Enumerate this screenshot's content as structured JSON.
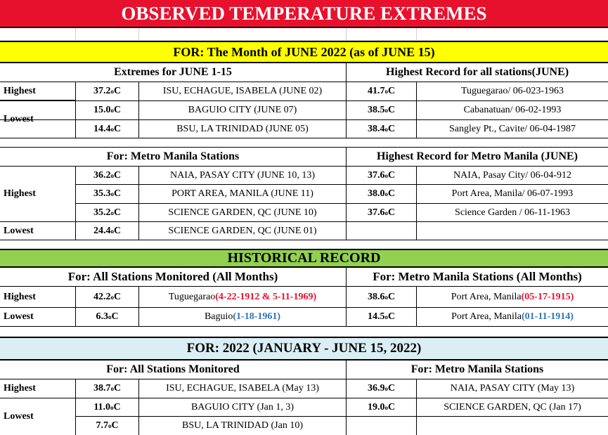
{
  "title": "OBSERVED TEMPERATURE EXTREMES",
  "month_banner": "FOR:   The Month of JUNE 2022 (as of  JUNE 15)",
  "section1": {
    "left_header": "Extremes for JUNE 1-15",
    "right_header": "Highest Record for all stations(JUNE)",
    "highest_label": "Highest",
    "lowest_label": "Lowest",
    "rows": [
      {
        "value": "37.2",
        "unit": "C",
        "station": "ISU, ECHAGUE, ISABELA (JUNE 02)",
        "rec_value": "41.7",
        "rec_unit": "C",
        "rec_station": "Tuguegarao/ 06-023-1963"
      },
      {
        "value": "15.0",
        "unit": "C",
        "station": "BAGUIO CITY  (JUNE 07)",
        "rec_value": "38.5",
        "rec_unit": "C",
        "rec_station": "Cabanatuan/ 06-02-1993"
      },
      {
        "value": "14.4",
        "unit": "C",
        "station": "BSU, LA TRINIDAD (JUNE 05)",
        "rec_value": "38.4",
        "rec_unit": "C",
        "rec_station": "Sangley Pt., Cavite/ 06-04-1987"
      }
    ]
  },
  "section2": {
    "left_header": "For: Metro Manila Stations",
    "right_header": "Highest Record for Metro Manila (JUNE)",
    "highest_label": "Highest",
    "lowest_label": "Lowest",
    "rows": [
      {
        "value": "36.2 ",
        "unit": "C",
        "station": "NAIA, PASAY CITY (JUNE 10, 13)",
        "rec_value": "37.6",
        "rec_unit": "C",
        "rec_station": "NAIA, Pasay City/  06-04-912"
      },
      {
        "value": "35.3 ",
        "unit": "C",
        "station": "PORT AREA, MANILA (JUNE 11)",
        "rec_value": "38.0",
        "rec_unit": "C",
        "rec_station": "Port Area, Manila/ 06-07-1993"
      },
      {
        "value": "35.2 ",
        "unit": "C",
        "station": "SCIENCE GARDEN, QC (JUNE 10)",
        "rec_value": "37.6",
        "rec_unit": "C",
        "rec_station": "Science Garden / 06-11-1963"
      },
      {
        "value": "24.4 ",
        "unit": "C",
        "station": "SCIENCE GARDEN, QC (JUNE 01)"
      }
    ]
  },
  "historical": {
    "banner": "HISTORICAL RECORD",
    "left_header": "For:  All Stations Monitored (All Months)",
    "right_header": "For: Metro Manila Stations (All Months)",
    "highest": {
      "label": "Highest",
      "value": "42.2 ",
      "unit": "C",
      "station": "Tuguegarao ",
      "date": "(4-22-1912 & 5-11-1969)",
      "mm_value": "38.6 ",
      "mm_unit": "C",
      "mm_station": "Port Area, Manila ",
      "mm_date": "(05-17-1915)"
    },
    "lowest": {
      "label": "Lowest",
      "value": "6.3 ",
      "unit": "C",
      "station": "Baguio ",
      "date": "(1-18-1961)",
      "mm_value": "14.5 ",
      "mm_unit": "C",
      "mm_station": "Port Area, Manila ",
      "mm_date": "(01-11-1914)"
    }
  },
  "year2022": {
    "banner": "FOR:    2022 (JANUARY - JUNE 15, 2022)",
    "left_header": "For:  All Stations Monitored",
    "right_header": "For: Metro Manila Stations",
    "highest_label": "Highest",
    "lowest_label": "Lowest",
    "rows": [
      {
        "value": "38.7",
        "unit": "C",
        "station": "ISU, ECHAGUE, ISABELA (May 13)",
        "mm_value": "36.9 ",
        "mm_unit": "C",
        "mm_station": "NAIA, PASAY CITY (May 13)"
      },
      {
        "value": "11.0",
        "unit": "C",
        "station": "BAGUIO CITY  (Jan 1, 3)",
        "mm_value": "19.0 ",
        "mm_unit": "C",
        "mm_station": "SCIENCE GARDEN, QC (Jan 17)"
      },
      {
        "value": "7.7",
        "unit": "C",
        "station": "BSU, LA TRINIDAD (Jan 10)"
      }
    ]
  },
  "degree_symbol": "o"
}
